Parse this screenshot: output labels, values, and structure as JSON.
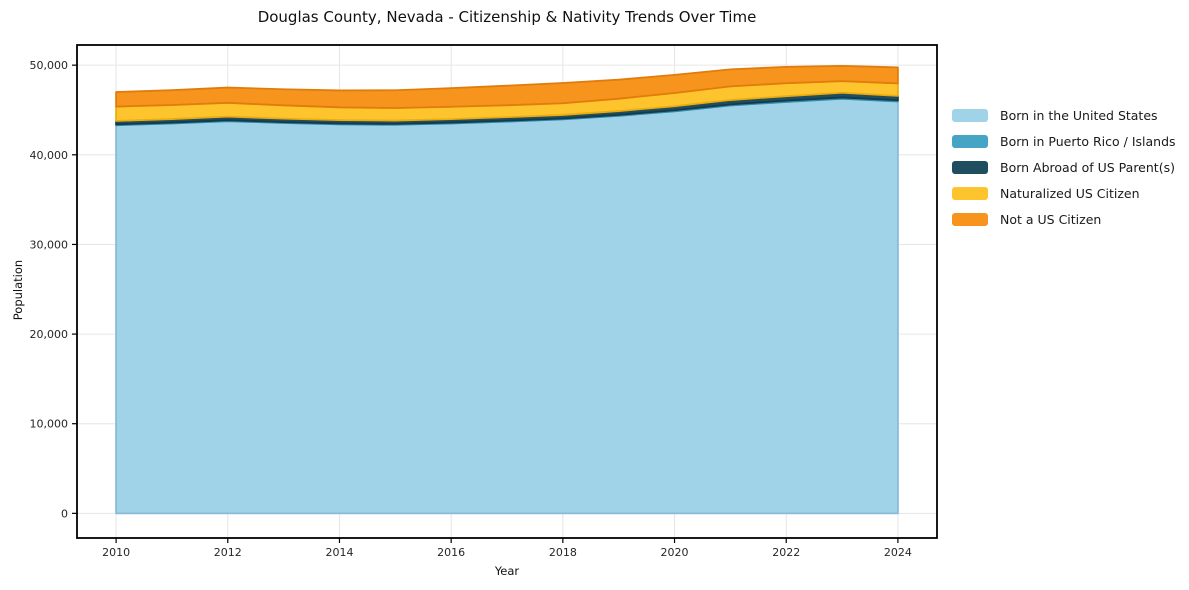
{
  "page": {
    "background": "#ffffff"
  },
  "chart_data": {
    "type": "area",
    "stacked": true,
    "title": "Douglas County, Nevada - Citizenship & Nativity Trends Over Time",
    "xlabel": "Year",
    "ylabel": "Population",
    "x": [
      2010,
      2011,
      2012,
      2013,
      2014,
      2015,
      2016,
      2017,
      2018,
      2019,
      2020,
      2021,
      2022,
      2023,
      2024
    ],
    "series": [
      {
        "name": "Born in the United States",
        "color": "#a1d3e8",
        "edge": "#86bcd9",
        "values": [
          43300,
          43500,
          43750,
          43550,
          43400,
          43350,
          43500,
          43700,
          43950,
          44350,
          44850,
          45500,
          45900,
          46250,
          45950
        ]
      },
      {
        "name": "Born in Puerto Rico / Islands",
        "color": "#46a5c5",
        "edge": "#2f8bad",
        "values": [
          100,
          100,
          110,
          100,
          90,
          100,
          100,
          110,
          100,
          110,
          120,
          130,
          140,
          150,
          140
        ]
      },
      {
        "name": "Born Abroad of US Parent(s)",
        "color": "#1f4e61",
        "edge": "#153b4b",
        "values": [
          380,
          390,
          400,
          390,
          380,
          370,
          380,
          390,
          400,
          420,
          450,
          480,
          500,
          520,
          480
        ]
      },
      {
        "name": "Naturalized US Citizen",
        "color": "#fdc42d",
        "edge": "#edac0e",
        "values": [
          1600,
          1570,
          1540,
          1480,
          1430,
          1400,
          1380,
          1330,
          1300,
          1380,
          1480,
          1520,
          1450,
          1300,
          1400
        ]
      },
      {
        "name": "Not a US Citizen",
        "color": "#f7941e",
        "edge": "#e17c0b",
        "values": [
          1620,
          1650,
          1700,
          1790,
          1880,
          1980,
          2080,
          2180,
          2260,
          2120,
          2020,
          1900,
          1820,
          1700,
          1780
        ]
      }
    ],
    "stacked_totals": [
      47000,
      47210,
      47500,
      47310,
      47180,
      47200,
      47440,
      47710,
      48010,
      48380,
      48920,
      49530,
      49810,
      49920,
      49750
    ],
    "xlim": [
      2009.3,
      2024.7
    ],
    "ylim": [
      -2750,
      52250
    ],
    "xticks": [
      2010,
      2012,
      2014,
      2016,
      2018,
      2020,
      2022,
      2024
    ],
    "yticks": [
      0,
      10000,
      20000,
      30000,
      40000,
      50000
    ],
    "ytick_labels": [
      "0",
      "10,000",
      "20,000",
      "30,000",
      "40,000",
      "50,000"
    ],
    "grid": true,
    "legend_position": "right"
  },
  "colors": {
    "grid": "#e6e6e6",
    "spine": "#000000",
    "tick_text": "#262626",
    "background": "#ffffff"
  }
}
